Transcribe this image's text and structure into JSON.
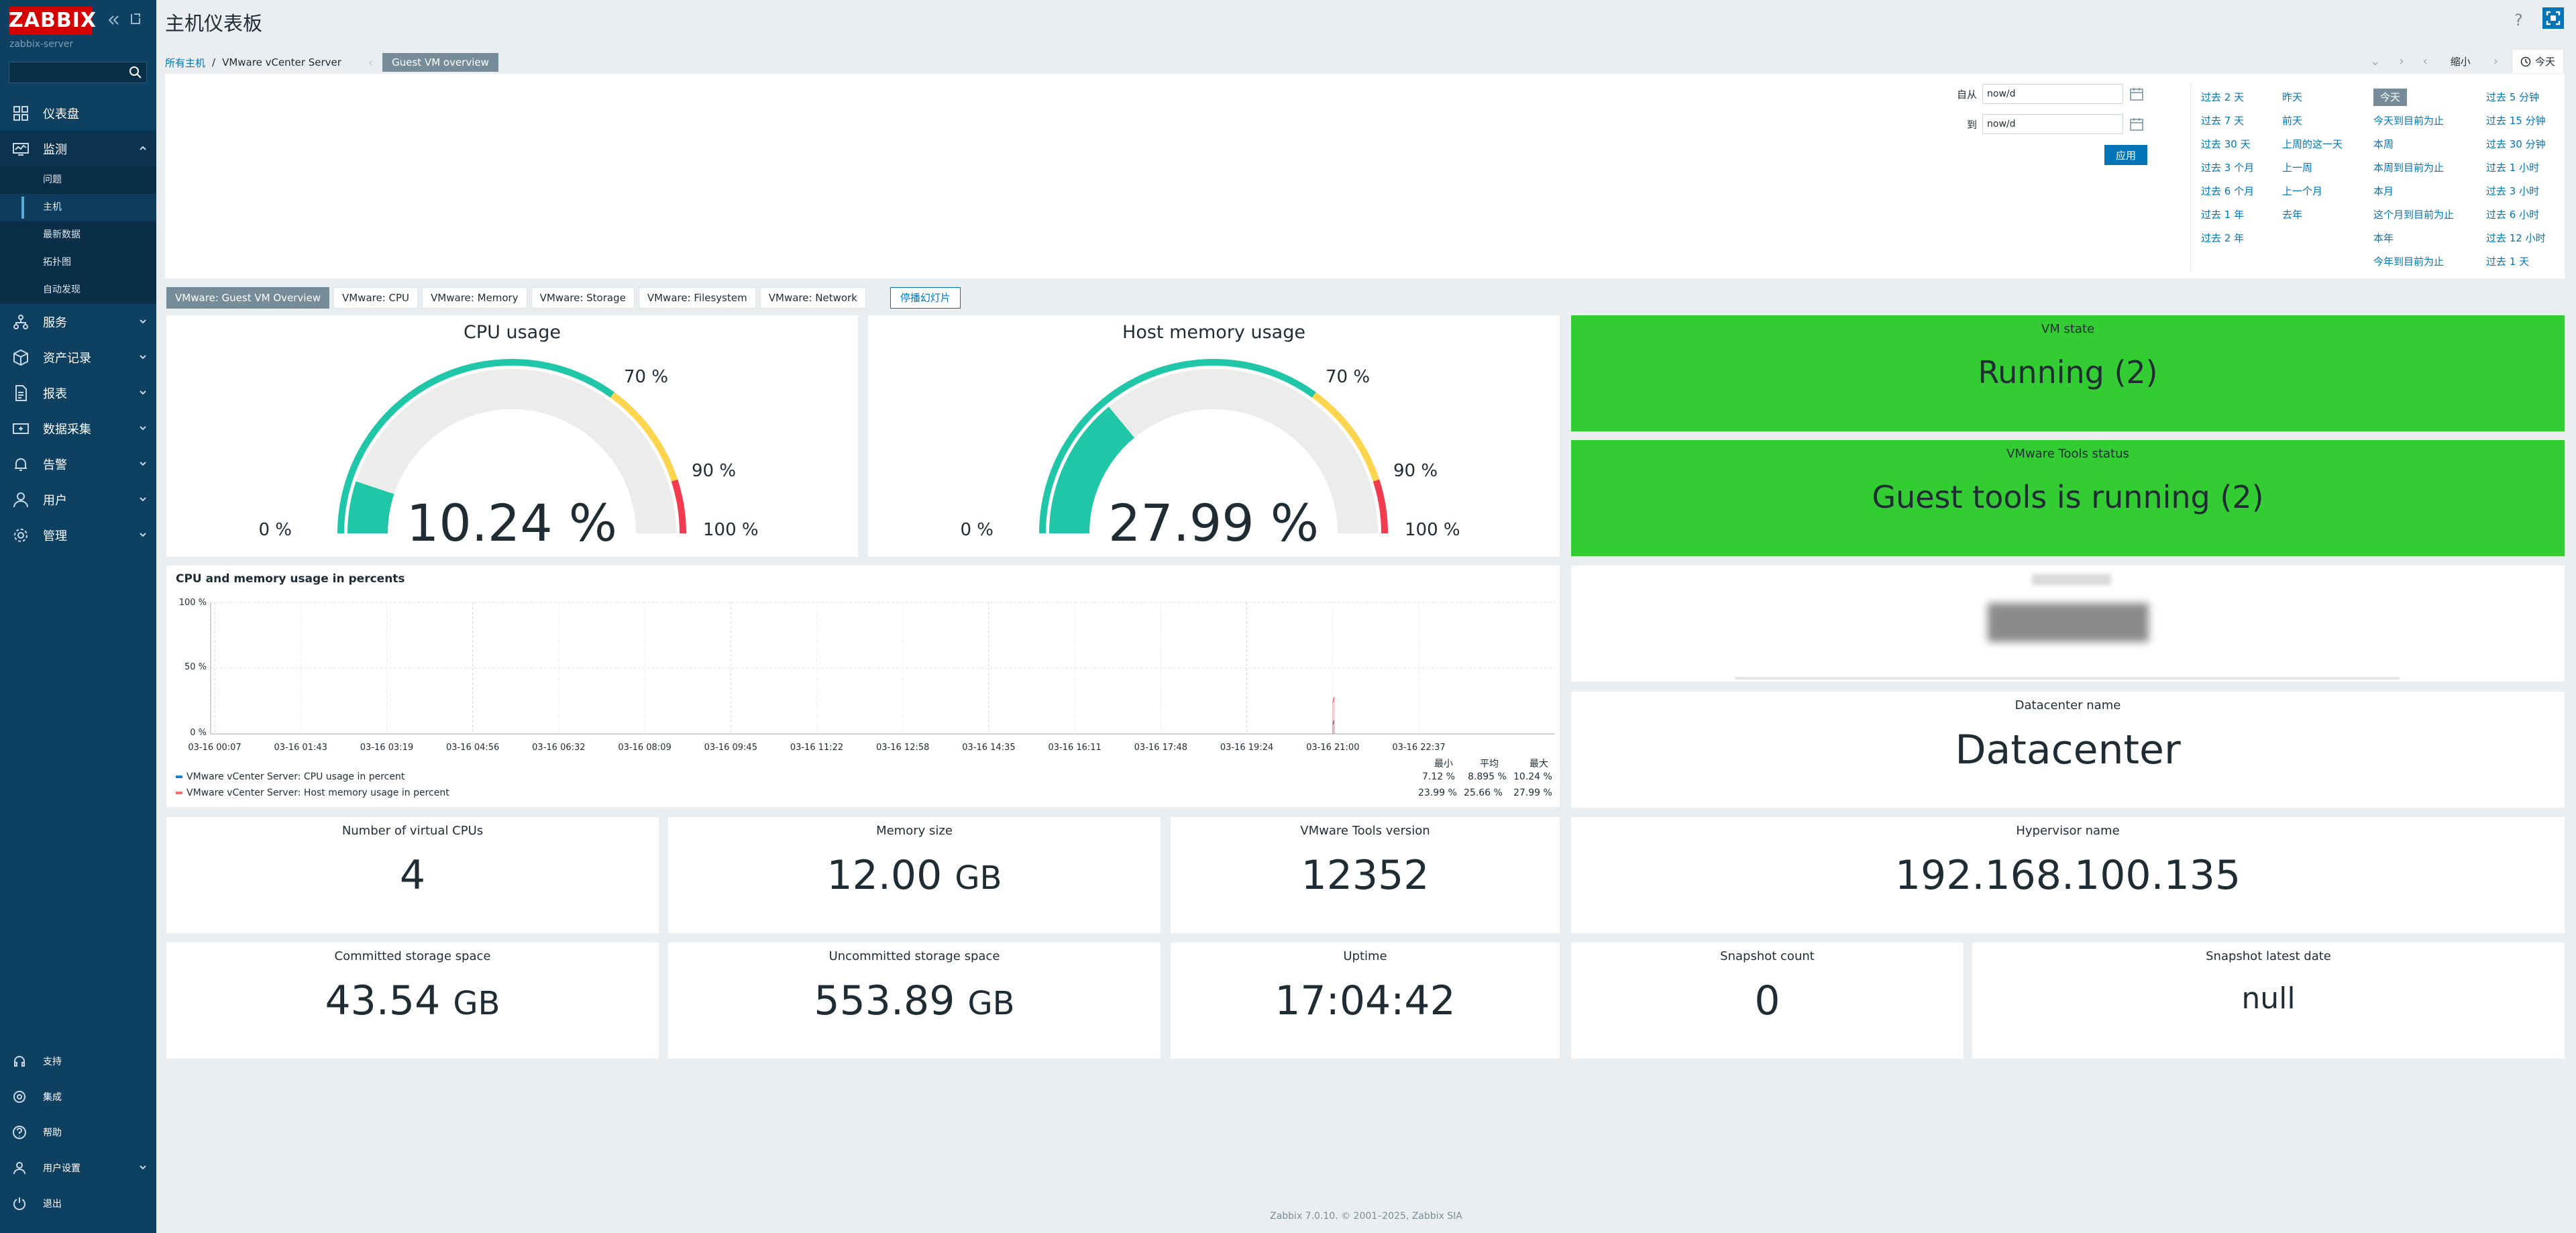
{
  "sidebar": {
    "logo": "ZABBIX",
    "server": "zabbix-server",
    "nav": [
      {
        "label": "仪表盘",
        "icon": "dashboard-icon"
      },
      {
        "label": "监测",
        "icon": "monitoring-icon"
      },
      {
        "label": "服务",
        "icon": "services-icon"
      },
      {
        "label": "资产记录",
        "icon": "inventory-icon"
      },
      {
        "label": "报表",
        "icon": "reports-icon"
      },
      {
        "label": "数据采集",
        "icon": "data-collection-icon"
      },
      {
        "label": "告警",
        "icon": "alerts-icon"
      },
      {
        "label": "用户",
        "icon": "users-icon"
      },
      {
        "label": "管理",
        "icon": "administration-icon"
      }
    ],
    "monitoring_sub": [
      "问题",
      "主机",
      "最新数据",
      "拓扑图",
      "自动发现"
    ],
    "bottom": [
      {
        "label": "支持",
        "icon": "support-icon"
      },
      {
        "label": "集成",
        "icon": "integrations-icon"
      },
      {
        "label": "帮助",
        "icon": "help-icon"
      },
      {
        "label": "用户设置",
        "icon": "user-settings-icon"
      },
      {
        "label": "退出",
        "icon": "sign-out-icon"
      }
    ]
  },
  "header": {
    "title": "主机仪表板",
    "help": "?",
    "breadcrumb": {
      "all_hosts": "所有主机",
      "sep": "/",
      "host": "VMware vCenter Server",
      "dashboard": "Guest VM overview"
    },
    "zoom_out": "缩小",
    "time_tab": "今天"
  },
  "time_filter": {
    "from_label": "自从",
    "from_value": "now/d",
    "to_label": "到",
    "to_value": "now/d",
    "apply": "应用",
    "quick": [
      [
        "过去 2 天",
        "过去 7 天",
        "过去 30 天",
        "过去 3 个月",
        "过去 6 个月",
        "过去 1 年",
        "过去 2 年"
      ],
      [
        "昨天",
        "前天",
        "上周的这一天",
        "上一周",
        "上一个月",
        "去年"
      ],
      [
        "今天",
        "今天到目前为止",
        "本周",
        "本周到目前为止",
        "本月",
        "这个月到目前为止",
        "本年",
        "今年到目前为止"
      ],
      [
        "过去 5 分钟",
        "过去 15 分钟",
        "过去 30 分钟",
        "过去 1 小时",
        "过去 3 小时",
        "过去 6 小时",
        "过去 12 小时",
        "过去 1 天"
      ]
    ]
  },
  "tabs": [
    "VMware: Guest VM Overview",
    "VMware: CPU",
    "VMware: Memory",
    "VMware: Storage",
    "VMware: Filesystem",
    "VMware: Network"
  ],
  "slideshow": "停播幻灯片",
  "gauges": [
    {
      "title": "CPU usage",
      "value_text": "10.24 %",
      "value": 10.24,
      "labels": [
        "0 %",
        "70 %",
        "90 %",
        "100 %"
      ]
    },
    {
      "title": "Host memory usage",
      "value_text": "27.99 %",
      "value": 27.99,
      "labels": [
        "0 %",
        "70 %",
        "90 %",
        "100 %"
      ]
    }
  ],
  "colors": {
    "gauge_fill": "#1fc7a8",
    "gauge_track": "#ececec",
    "warn": "#ffd54f",
    "crit": "#f23b4e",
    "ok_bg": "#33cc33",
    "cpu_series": "#1a7fd4",
    "mem_series": "#f86c6c"
  },
  "graph": {
    "title": "CPU and memory usage in percents",
    "y_ticks": [
      "100 %",
      "50 %",
      "0 %"
    ],
    "x_ticks": [
      "03-16 00:07",
      "03-16 01:43",
      "03-16 03:19",
      "03-16 04:56",
      "03-16 06:32",
      "03-16 08:09",
      "03-16 09:45",
      "03-16 11:22",
      "03-16 12:58",
      "03-16 14:35",
      "03-16 16:11",
      "03-16 17:48",
      "03-16 19:24",
      "03-16 21:00",
      "03-16 22:37"
    ],
    "stats_header": [
      "最小",
      "平均",
      "最大"
    ],
    "series": [
      {
        "name": "VMware vCenter Server: CPU usage in percent",
        "min": "7.12 %",
        "avg": "8.895 %",
        "max": "10.24 %"
      },
      {
        "name": "VMware vCenter Server: Host memory usage in percent",
        "min": "23.99 %",
        "avg": "25.66 %",
        "max": "27.99 %"
      }
    ]
  },
  "chart_data": {
    "type": "line",
    "title": "CPU and memory usage in percents",
    "ylim": [
      0,
      100
    ],
    "x": [
      "03-16 21:00",
      "03-16 21:05"
    ],
    "series": [
      {
        "name": "VMware vCenter Server: CPU usage in percent",
        "values": [
          7.12,
          10.24
        ]
      },
      {
        "name": "VMware vCenter Server: Host memory usage in percent",
        "values": [
          23.99,
          27.99
        ]
      }
    ]
  },
  "items": {
    "vm_state": {
      "title": "VM state",
      "value": "Running (2)"
    },
    "tools_status": {
      "title": "VMware Tools status",
      "value": "Guest tools is running (2)"
    },
    "datacenter": {
      "title": "Datacenter name",
      "value": "Datacenter"
    },
    "vcpus": {
      "title": "Number of virtual CPUs",
      "value": "4"
    },
    "memory": {
      "title": "Memory size",
      "value": "12.00",
      "unit": "GB"
    },
    "tools_version": {
      "title": "VMware Tools version",
      "value": "12352"
    },
    "hypervisor": {
      "title": "Hypervisor name",
      "value": "192.168.100.135"
    },
    "committed": {
      "title": "Committed storage space",
      "value": "43.54",
      "unit": "GB"
    },
    "uncommitted": {
      "title": "Uncommitted storage space",
      "value": "553.89",
      "unit": "GB"
    },
    "uptime": {
      "title": "Uptime",
      "value": "17:04:42"
    },
    "snap_count": {
      "title": "Snapshot count",
      "value": "0"
    },
    "snap_date": {
      "title": "Snapshot latest date",
      "value": "null"
    }
  },
  "footer": "Zabbix 7.0.10. © 2001–2025, Zabbix SIA"
}
